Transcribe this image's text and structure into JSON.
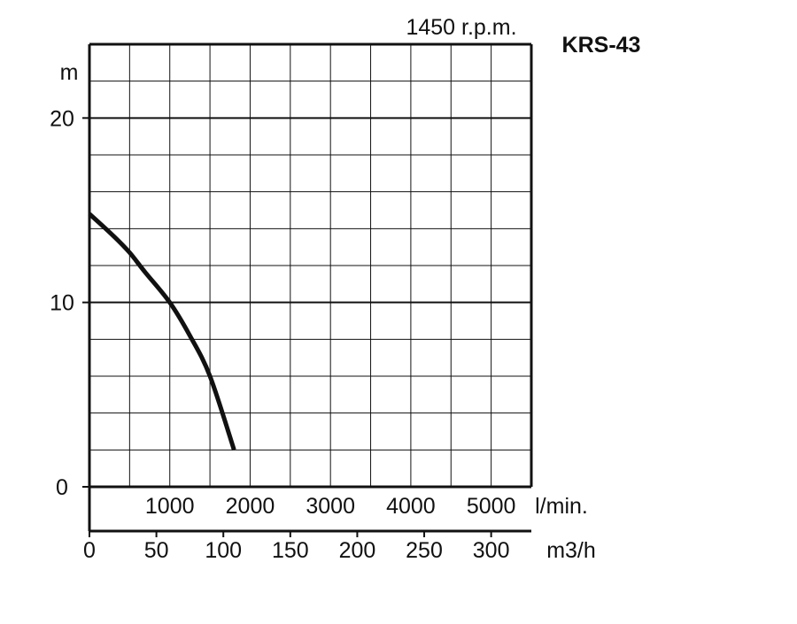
{
  "chart_data": {
    "type": "line",
    "title": "KRS-43",
    "subtitle": "1450 r.p.m.",
    "ylabel": "m",
    "xlabel_flow_lmin": "l/min.",
    "xlabel_flow_m3h": "m3/h",
    "ylim": [
      0,
      24
    ],
    "xlim_lmin": [
      0,
      5500
    ],
    "xlim_m3h": [
      0,
      330
    ],
    "yticks": [
      0,
      10,
      20
    ],
    "ytick_labels": [
      "0",
      "10",
      "20"
    ],
    "lmin_ticks": [
      1000,
      2000,
      3000,
      4000,
      5000
    ],
    "lmin_tick_labels": [
      "1000",
      "2000",
      "3000",
      "4000",
      "5000"
    ],
    "m3h_ticks": [
      0,
      50,
      100,
      150,
      200,
      250,
      300
    ],
    "m3h_tick_labels": [
      "0",
      "50",
      "100",
      "150",
      "200",
      "250",
      "300"
    ],
    "grid": true,
    "grid_x_step_lmin": 500,
    "grid_y_step_m": 2,
    "series": [
      {
        "x_lmin": [
          0,
          300,
          500,
          700,
          1000,
          1250,
          1500,
          1800
        ],
        "y_m": [
          14.8,
          13.6,
          12.7,
          11.6,
          10.0,
          8.2,
          6.0,
          2.0
        ]
      }
    ],
    "line_color": "#111111",
    "axis_color": "#111111"
  }
}
